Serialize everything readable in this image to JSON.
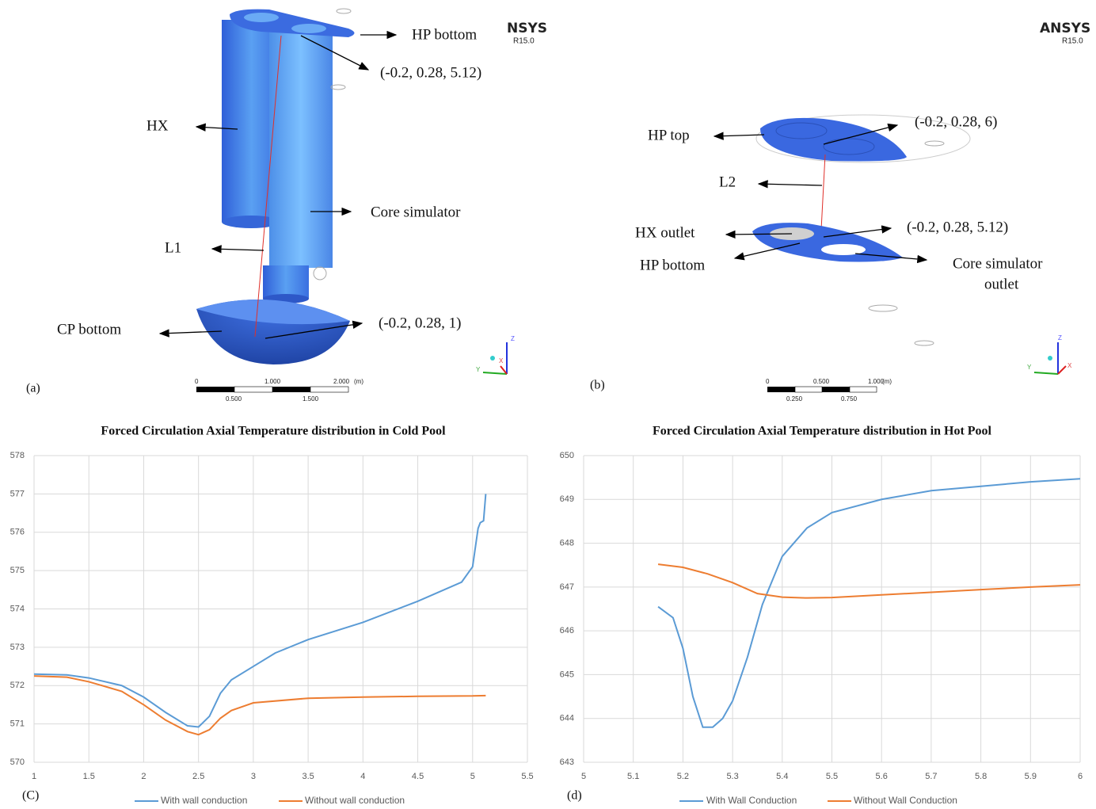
{
  "figures": [
    {
      "panel": "(a)",
      "logo": "NSYS",
      "version": "R15.0",
      "labels": [
        "HP bottom",
        "(-0.2, 0.28, 5.12)",
        "HX",
        "Core simulator",
        "L1",
        "CP bottom",
        "(-0.2, 0.28, 1)"
      ],
      "scale": {
        "top": [
          "0",
          "1.000",
          "2.000"
        ],
        "unit": "(m)",
        "bottom": [
          "0.500",
          "1.500"
        ]
      },
      "axes": [
        "Z",
        "Y",
        "X"
      ]
    },
    {
      "panel": "(b)",
      "logo": "ANSYS",
      "version": "R15.0",
      "labels": [
        "(-0.2, 0.28, 6)",
        "HP top",
        "L2",
        "HX outlet",
        "(-0.2, 0.28, 5.12)",
        "HP bottom",
        "Core simulator",
        "outlet"
      ],
      "scale": {
        "top": [
          "0",
          "0.500",
          "1.000"
        ],
        "unit": "(m)",
        "bottom": [
          "0.250",
          "0.750"
        ]
      },
      "axes": [
        "Z",
        "Y",
        "X"
      ]
    }
  ],
  "chart_data": [
    {
      "type": "line",
      "title": "Forced Circulation Axial Temperature distribution in Cold Pool",
      "panel_label": "(C)",
      "xlim": [
        1,
        5.5
      ],
      "xticks": [
        1,
        1.5,
        2,
        2.5,
        3,
        3.5,
        4,
        4.5,
        5,
        5.5
      ],
      "ylim": [
        570,
        578
      ],
      "yticks": [
        570,
        571,
        572,
        573,
        574,
        575,
        576,
        577,
        578
      ],
      "grid": true,
      "legend": "bottom",
      "series": [
        {
          "name": "With wall conduction",
          "color": "#5b9bd5",
          "x": [
            1,
            1.3,
            1.5,
            1.8,
            2.0,
            2.2,
            2.4,
            2.5,
            2.6,
            2.7,
            2.8,
            3.0,
            3.2,
            3.5,
            4.0,
            4.5,
            4.9,
            5.0,
            5.05,
            5.07,
            5.1,
            5.12
          ],
          "values": [
            572.3,
            572.28,
            572.2,
            572.0,
            571.7,
            571.3,
            570.95,
            570.92,
            571.2,
            571.8,
            572.15,
            572.5,
            572.85,
            573.2,
            573.65,
            574.2,
            574.7,
            575.1,
            576.1,
            576.25,
            576.3,
            577.0
          ]
        },
        {
          "name": "Without wall conduction",
          "color": "#ed7d31",
          "x": [
            1,
            1.3,
            1.5,
            1.8,
            2.0,
            2.2,
            2.4,
            2.5,
            2.6,
            2.7,
            2.8,
            3.0,
            3.5,
            4.0,
            4.5,
            5.0,
            5.12
          ],
          "values": [
            572.25,
            572.22,
            572.1,
            571.85,
            571.5,
            571.1,
            570.8,
            570.72,
            570.85,
            571.15,
            571.35,
            571.55,
            571.67,
            571.7,
            571.72,
            571.73,
            571.74
          ]
        }
      ]
    },
    {
      "type": "line",
      "title": "Forced Circulation Axial Temperature distribution in Hot Pool",
      "panel_label": "(d)",
      "xlim": [
        5,
        6
      ],
      "xticks": [
        5,
        5.1,
        5.2,
        5.3,
        5.4,
        5.5,
        5.6,
        5.7,
        5.8,
        5.9,
        6
      ],
      "ylim": [
        643,
        650
      ],
      "yticks": [
        643,
        644,
        645,
        646,
        647,
        648,
        649,
        650
      ],
      "grid": true,
      "legend": "bottom",
      "series": [
        {
          "name": "With Wall Conduction",
          "color": "#5b9bd5",
          "x": [
            5.15,
            5.18,
            5.2,
            5.22,
            5.24,
            5.26,
            5.28,
            5.3,
            5.33,
            5.36,
            5.4,
            5.45,
            5.5,
            5.6,
            5.7,
            5.8,
            5.9,
            6.0
          ],
          "values": [
            646.55,
            646.3,
            645.6,
            644.5,
            643.8,
            643.8,
            644.0,
            644.4,
            645.4,
            646.6,
            647.7,
            648.35,
            648.7,
            649.0,
            649.2,
            649.3,
            649.4,
            649.47
          ]
        },
        {
          "name": "Without Wall Conduction",
          "color": "#ed7d31",
          "x": [
            5.15,
            5.2,
            5.25,
            5.3,
            5.35,
            5.4,
            5.45,
            5.5,
            5.6,
            5.7,
            5.8,
            5.9,
            6.0
          ],
          "values": [
            647.52,
            647.45,
            647.3,
            647.1,
            646.85,
            646.77,
            646.75,
            646.76,
            646.82,
            646.88,
            646.94,
            647.0,
            647.05
          ]
        }
      ]
    }
  ]
}
